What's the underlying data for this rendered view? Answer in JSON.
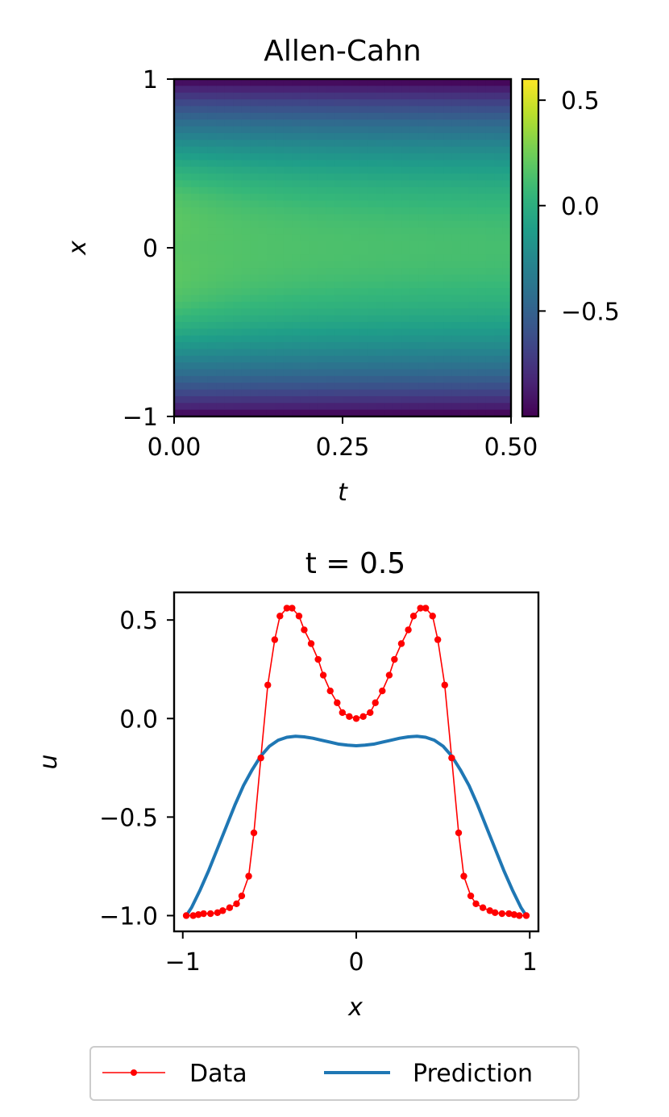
{
  "chart_data": [
    {
      "type": "heatmap",
      "title": "Allen-Cahn",
      "xlabel": "t",
      "ylabel": "x",
      "xlim": [
        0.0,
        0.5
      ],
      "ylim": [
        -1,
        1
      ],
      "x_ticks": [
        "0.00",
        "0.25",
        "0.50"
      ],
      "y_ticks": [
        "−1",
        "0",
        "1"
      ],
      "colormap": "viridis",
      "color_range": [
        -1.0,
        0.6
      ],
      "colorbar_ticks": [
        "0.5",
        "0.0",
        "−0.5"
      ],
      "colorbar_tick_values": [
        0.5,
        0.0,
        -0.5
      ],
      "grid": false
    },
    {
      "type": "line",
      "title": "t = 0.5",
      "xlabel": "x",
      "ylabel": "u",
      "xlim": [
        -1.05,
        1.05
      ],
      "ylim": [
        -1.08,
        0.64
      ],
      "x_ticks": [
        "−1",
        "0",
        "1"
      ],
      "x_tick_values": [
        -1,
        0,
        1
      ],
      "y_ticks": [
        "0.5",
        "0.0",
        "−0.5",
        "−1.0"
      ],
      "y_tick_values": [
        0.5,
        0.0,
        -0.5,
        -1.0
      ],
      "grid": false,
      "legend": {
        "placement": "bottom-center",
        "columns": 2
      },
      "series": [
        {
          "name": "Data",
          "color": "#ff0000",
          "marker": "dot",
          "x": [
            -0.98,
            -0.94,
            -0.91,
            -0.88,
            -0.84,
            -0.8,
            -0.77,
            -0.73,
            -0.69,
            -0.66,
            -0.62,
            -0.59,
            -0.55,
            -0.51,
            -0.47,
            -0.44,
            -0.4,
            -0.37,
            -0.33,
            -0.3,
            -0.26,
            -0.22,
            -0.19,
            -0.15,
            -0.11,
            -0.08,
            -0.04,
            0.0,
            0.04,
            0.08,
            0.11,
            0.15,
            0.19,
            0.22,
            0.26,
            0.3,
            0.33,
            0.37,
            0.4,
            0.44,
            0.47,
            0.51,
            0.55,
            0.59,
            0.62,
            0.66,
            0.69,
            0.73,
            0.77,
            0.8,
            0.84,
            0.88,
            0.91,
            0.94,
            0.98
          ],
          "y": [
            -1.0,
            -1.0,
            -0.995,
            -0.99,
            -0.99,
            -0.985,
            -0.975,
            -0.96,
            -0.94,
            -0.9,
            -0.8,
            -0.58,
            -0.2,
            0.17,
            0.4,
            0.52,
            0.56,
            0.56,
            0.52,
            0.45,
            0.38,
            0.3,
            0.22,
            0.14,
            0.08,
            0.03,
            0.01,
            0.0,
            0.01,
            0.03,
            0.08,
            0.14,
            0.22,
            0.3,
            0.38,
            0.45,
            0.52,
            0.56,
            0.56,
            0.52,
            0.4,
            0.17,
            -0.2,
            -0.58,
            -0.8,
            -0.9,
            -0.94,
            -0.96,
            -0.975,
            -0.985,
            -0.99,
            -0.99,
            -0.995,
            -1.0,
            -1.0
          ]
        },
        {
          "name": "Prediction",
          "color": "#1f77b4",
          "marker": "none",
          "x": [
            -0.98,
            -0.95,
            -0.9,
            -0.85,
            -0.8,
            -0.75,
            -0.7,
            -0.65,
            -0.6,
            -0.55,
            -0.5,
            -0.45,
            -0.4,
            -0.35,
            -0.3,
            -0.25,
            -0.2,
            -0.15,
            -0.1,
            -0.05,
            0.0,
            0.05,
            0.1,
            0.15,
            0.2,
            0.25,
            0.3,
            0.35,
            0.4,
            0.45,
            0.5,
            0.55,
            0.6,
            0.65,
            0.7,
            0.75,
            0.8,
            0.85,
            0.9,
            0.95,
            0.98
          ],
          "y": [
            -1.0,
            -0.96,
            -0.87,
            -0.77,
            -0.66,
            -0.55,
            -0.44,
            -0.34,
            -0.26,
            -0.19,
            -0.14,
            -0.11,
            -0.095,
            -0.09,
            -0.093,
            -0.1,
            -0.11,
            -0.12,
            -0.13,
            -0.135,
            -0.138,
            -0.135,
            -0.13,
            -0.12,
            -0.11,
            -0.1,
            -0.093,
            -0.09,
            -0.095,
            -0.11,
            -0.14,
            -0.19,
            -0.26,
            -0.34,
            -0.44,
            -0.55,
            -0.66,
            -0.77,
            -0.87,
            -0.96,
            -1.0
          ]
        }
      ]
    }
  ]
}
